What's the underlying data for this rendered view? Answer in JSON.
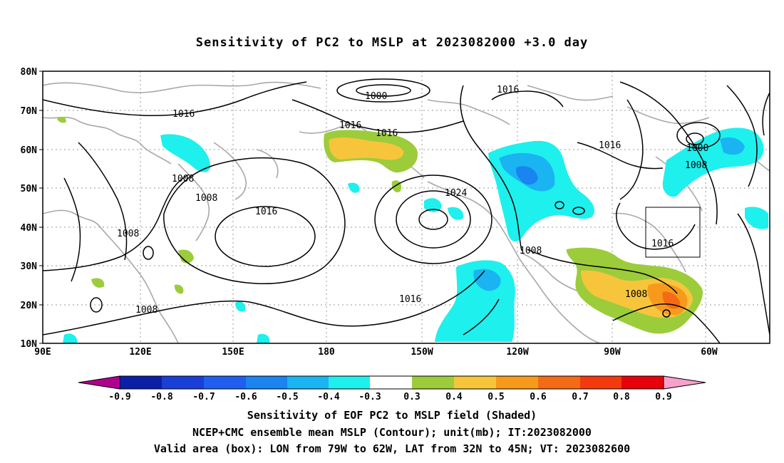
{
  "title": "Sensitivity of PC2 to MSLP at 2023082000 +3.0 day",
  "lat_ticks": [
    "80N",
    "70N",
    "60N",
    "50N",
    "40N",
    "30N",
    "20N",
    "10N"
  ],
  "lon_ticks": [
    "90E",
    "120E",
    "150E",
    "180",
    "150W",
    "120W",
    "90W",
    "60W"
  ],
  "contour_labels": [
    "1000",
    "1016",
    "1016",
    "1016",
    "1016",
    "1008",
    "1008",
    "1016",
    "1024",
    "1008",
    "1000",
    "1008",
    "1016",
    "1008",
    "1016",
    "1008"
  ],
  "colorbar": {
    "labels": [
      "-0.9",
      "-0.8",
      "-0.7",
      "-0.6",
      "-0.5",
      "-0.4",
      "-0.3",
      "0.3",
      "0.4",
      "0.5",
      "0.6",
      "0.7",
      "0.8",
      "0.9"
    ],
    "colors": [
      "#b0008f",
      "#0b1ea8",
      "#1a3fd6",
      "#1f5ff0",
      "#1a84f0",
      "#1ab4f2",
      "#1ef0ee",
      "#ffffff",
      "#9ccc3a",
      "#f7c53c",
      "#f79a1c",
      "#f56a14",
      "#f23a0c",
      "#e8000a",
      "#f7a0cc"
    ]
  },
  "captions": [
    "Sensitivity of EOF PC2 to MSLP field (Shaded)",
    "NCEP+CMC ensemble mean MSLP (Contour); unit(mb); IT:2023082000",
    "Valid area (box): LON from 79W to 62W, LAT from 32N to 45N; VT: 2023082600"
  ]
}
